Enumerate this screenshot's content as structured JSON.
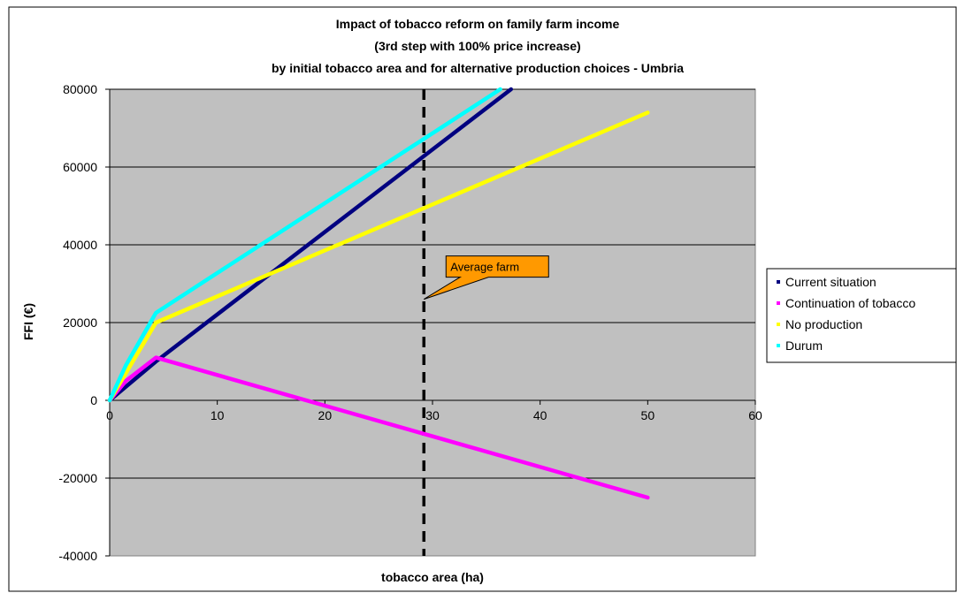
{
  "chart_data": {
    "type": "line",
    "title": [
      "Impact of  tobacco reform on family farm income",
      "(3rd step with 100% price increase)",
      "by initial tobacco area and for alternative production choices - Umbria"
    ],
    "xlabel": "tobacco area (ha)",
    "ylabel": "FFI (€)",
    "xlim": [
      0,
      60
    ],
    "ylim": [
      -40000,
      80000
    ],
    "x_ticks": [
      "0",
      "10",
      "20",
      "30",
      "40",
      "50",
      "60"
    ],
    "y_ticks": [
      "-40000",
      "-20000",
      "0",
      "20000",
      "40000",
      "60000",
      "80000"
    ],
    "grid": "horizontal",
    "plot_background": "#C0C0C0",
    "legend_position": "right",
    "series": [
      {
        "name": "Current situation",
        "color": "#000080",
        "points": [
          [
            0,
            0
          ],
          [
            4.3,
            10000
          ],
          [
            37.3,
            80000
          ]
        ]
      },
      {
        "name": "Continuation of tobacco",
        "color": "#FF00FF",
        "points": [
          [
            0,
            0
          ],
          [
            1.5,
            5000
          ],
          [
            4.3,
            11000
          ],
          [
            50,
            -25000
          ]
        ]
      },
      {
        "name": "No production",
        "color": "#FFFF00",
        "points": [
          [
            0,
            0
          ],
          [
            1.5,
            7000
          ],
          [
            4.3,
            20000
          ],
          [
            50,
            74000
          ]
        ]
      },
      {
        "name": "Durum",
        "color": "#00FFFF",
        "points": [
          [
            0,
            0
          ],
          [
            1.5,
            9000
          ],
          [
            4.3,
            22500
          ],
          [
            36.3,
            80000
          ]
        ]
      }
    ],
    "reference_line": {
      "x": 29.2,
      "style": "dashed",
      "color": "#000000"
    },
    "annotation": {
      "text": "Average farm",
      "fill": "#FF9900",
      "x": 29.2,
      "y": 26000
    }
  }
}
